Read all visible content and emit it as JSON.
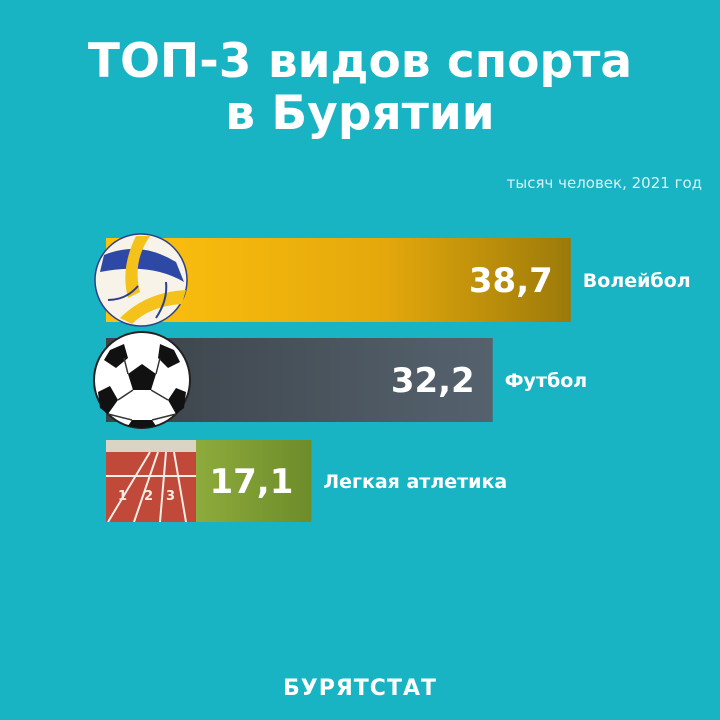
{
  "title_line1": "ТОП-3 видов спорта",
  "title_line2": "в Бурятии",
  "subtitle": "тысяч человек, 2021 год",
  "footer": "БУРЯТСТАТ",
  "colors": {
    "background": "#19b4c4",
    "volleyball_bar": "#f0b10a",
    "football_bar": "#465460",
    "athletics_bar": "#8aa83a"
  },
  "chart_data": {
    "type": "bar",
    "orientation": "horizontal",
    "unit": "тысяч человек, 2021 год",
    "categories": [
      "Волейбол",
      "Футбол",
      "Легкая атлетика"
    ],
    "values": [
      38.7,
      32.2,
      17.1
    ],
    "value_labels": [
      "38,7",
      "32,2",
      "17,1"
    ],
    "icons": [
      "volleyball-icon",
      "football-icon",
      "running-track-icon"
    ],
    "grid": false,
    "legend": "none"
  }
}
